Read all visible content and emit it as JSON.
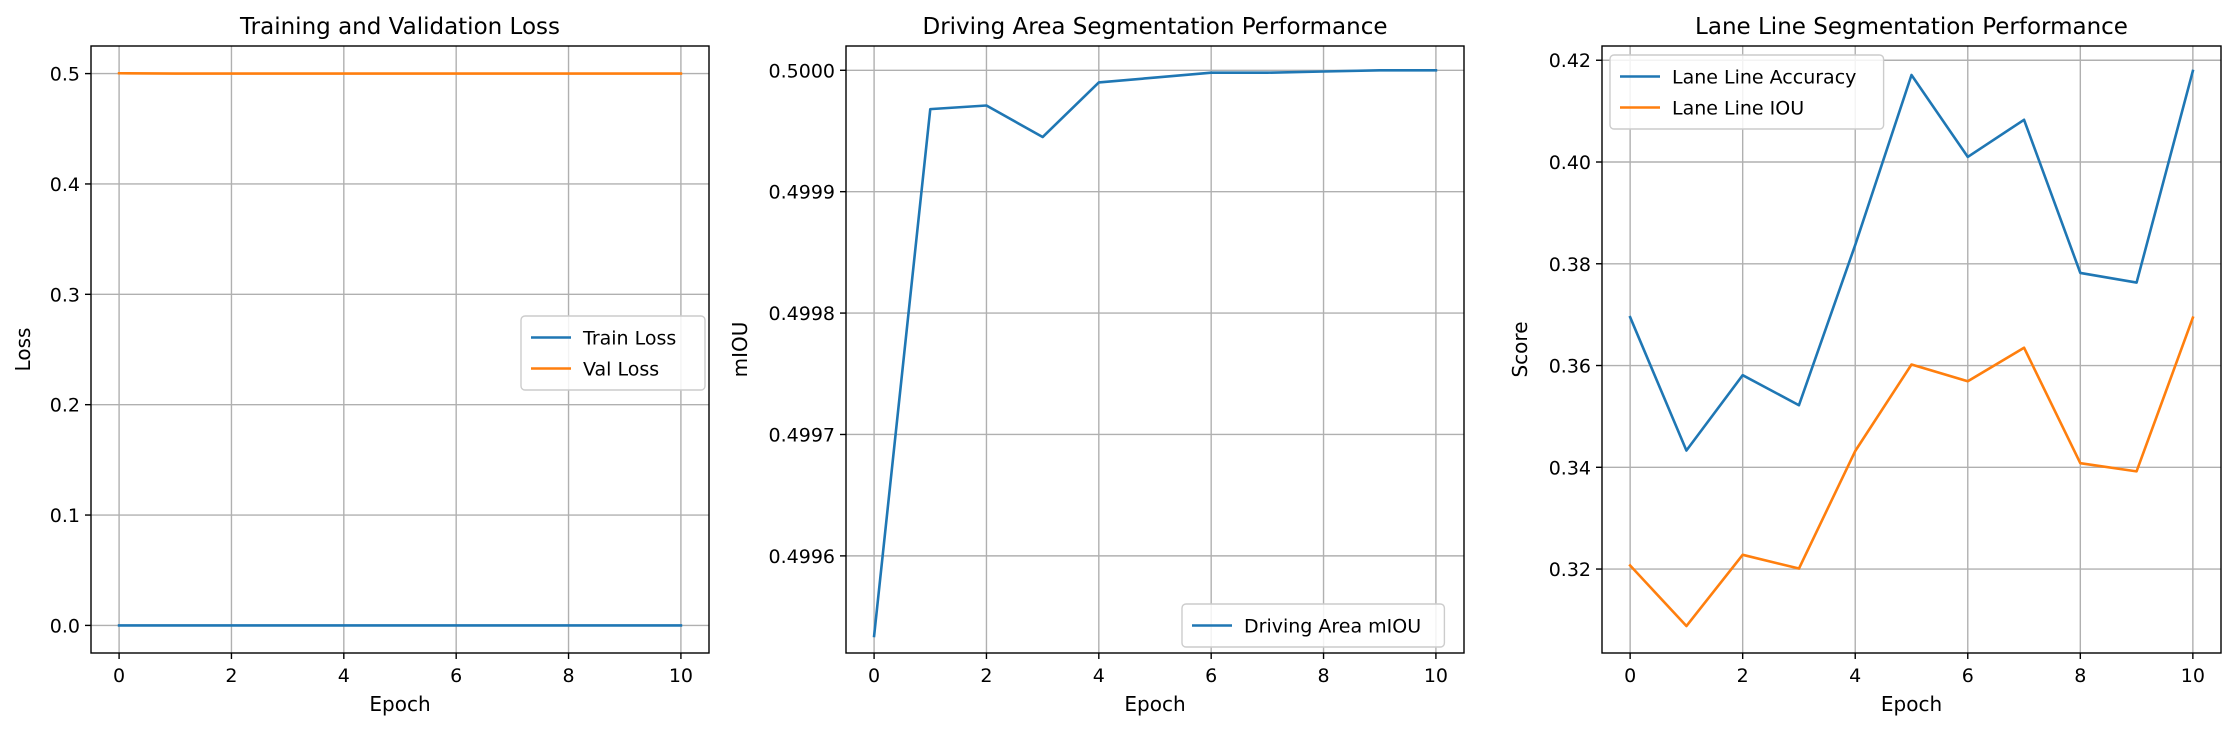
{
  "colors": {
    "series_blue": "#1f77b4",
    "series_orange": "#ff7f0e",
    "grid": "#b0b0b0",
    "axis": "#000000",
    "legend_border": "#cccccc"
  },
  "chart_data": [
    {
      "type": "line",
      "title": "Training and Validation Loss",
      "xlabel": "Epoch",
      "ylabel": "Loss",
      "xlim": [
        -0.5,
        10.5
      ],
      "ylim": [
        -0.025,
        0.525
      ],
      "xticks": [
        0,
        2,
        4,
        6,
        8,
        10
      ],
      "yticks": [
        0.0,
        0.1,
        0.2,
        0.3,
        0.4,
        0.5
      ],
      "ytick_labels": [
        "0.0",
        "0.1",
        "0.2",
        "0.3",
        "0.4",
        "0.5"
      ],
      "grid": true,
      "legend_position": "center-right",
      "x": [
        0,
        1,
        2,
        3,
        4,
        5,
        6,
        7,
        8,
        9,
        10
      ],
      "series": [
        {
          "name": "Train Loss",
          "color": "#1f77b4",
          "values": [
            0.0,
            0.0,
            0.0,
            0.0,
            0.0,
            0.0,
            0.0,
            0.0,
            0.0,
            0.0,
            0.0
          ]
        },
        {
          "name": "Val Loss",
          "color": "#ff7f0e",
          "values": [
            0.5003,
            0.5,
            0.5,
            0.5,
            0.5,
            0.5,
            0.5,
            0.5,
            0.5,
            0.5,
            0.5
          ]
        }
      ]
    },
    {
      "type": "line",
      "title": "Driving Area Segmentation Performance",
      "xlabel": "Epoch",
      "ylabel": "mIOU",
      "xlim": [
        -0.5,
        10.5
      ],
      "ylim": [
        0.49952,
        0.50002
      ],
      "xticks": [
        0,
        2,
        4,
        6,
        8,
        10
      ],
      "yticks": [
        0.4996,
        0.4997,
        0.4998,
        0.4999,
        0.5
      ],
      "ytick_labels": [
        "0.4996",
        "0.4997",
        "0.4998",
        "0.4999",
        "0.5000"
      ],
      "grid": true,
      "legend_position": "bottom-right",
      "x": [
        0,
        1,
        2,
        3,
        4,
        5,
        6,
        7,
        8,
        9,
        10
      ],
      "series": [
        {
          "name": "Driving Area mIOU",
          "color": "#1f77b4",
          "values": [
            0.499534,
            0.499968,
            0.499971,
            0.499945,
            0.49999,
            0.499994,
            0.499998,
            0.499998,
            0.499999,
            0.5,
            0.5
          ]
        }
      ]
    },
    {
      "type": "line",
      "title": "Lane Line Segmentation Performance",
      "xlabel": "Epoch",
      "ylabel": "Score",
      "xlim": [
        -0.5,
        10.5
      ],
      "ylim": [
        0.3035,
        0.4228
      ],
      "xticks": [
        0,
        2,
        4,
        6,
        8,
        10
      ],
      "yticks": [
        0.32,
        0.34,
        0.36,
        0.38,
        0.4,
        0.42
      ],
      "ytick_labels": [
        "0.32",
        "0.34",
        "0.36",
        "0.38",
        "0.40",
        "0.42"
      ],
      "grid": true,
      "legend_position": "top-left",
      "x": [
        0,
        1,
        2,
        3,
        4,
        5,
        6,
        7,
        8,
        9,
        10
      ],
      "series": [
        {
          "name": "Lane Line Accuracy",
          "color": "#1f77b4",
          "values": [
            0.3695,
            0.3433,
            0.3581,
            0.3522,
            0.3837,
            0.4171,
            0.401,
            0.4083,
            0.3782,
            0.3763,
            0.4179
          ]
        },
        {
          "name": "Lane Line IOU",
          "color": "#ff7f0e",
          "values": [
            0.3207,
            0.3088,
            0.3228,
            0.3201,
            0.3432,
            0.3602,
            0.3569,
            0.3635,
            0.3408,
            0.3392,
            0.3694
          ]
        }
      ]
    }
  ]
}
